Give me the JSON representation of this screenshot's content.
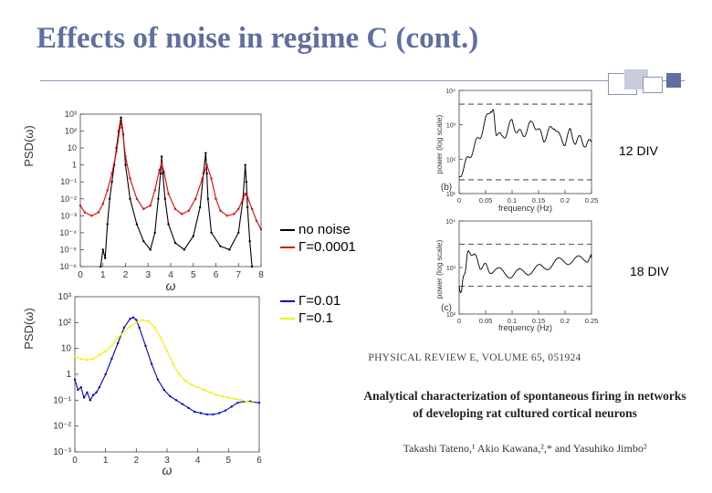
{
  "slide": {
    "title": "Effects of noise in regime C (cont.)"
  },
  "colors": {
    "title": "#5f6f9f",
    "no_noise": "#000000",
    "gamma_0001": "#e00000",
    "gamma_01": "#0000cc",
    "gamma_1": "#f0f000"
  },
  "legend": {
    "no_noise": "no noise",
    "gamma_0001": "Γ=0.0001",
    "gamma_01": "Γ=0.01",
    "gamma_1": "Γ=0.1"
  },
  "labels": {
    "div12": "12 DIV",
    "div18": "18 DIV"
  },
  "citation": {
    "journal": "PHYSICAL REVIEW E, VOLUME 65, 051924",
    "title_line1": "Analytical characterization of spontaneous firing in networks",
    "title_line2": "of developing rat cultured cortical neurons",
    "authors": "Takashi Tateno,¹ Akio Kawana,²,* and Yasuhiko Jimbo²"
  },
  "chart_data": [
    {
      "type": "line",
      "ylabel": "PSD(ω)",
      "xlabel": "ω",
      "xlim": [
        0,
        8
      ],
      "ylim_log10": [
        -6,
        3
      ],
      "yscale": "log",
      "xticks": [
        "0",
        "1",
        "2",
        "3",
        "4",
        "5",
        "6",
        "7",
        "8"
      ],
      "yticks": [
        "10⁻⁶",
        "10⁻⁵",
        "10⁻⁴",
        "10⁻³",
        "10⁻²",
        "10⁻¹",
        "1",
        "10",
        "10²",
        "10³"
      ],
      "series": [
        {
          "name": "no noise",
          "x": [
            0.9,
            1.0,
            1.1,
            1.2,
            1.3,
            1.4,
            1.5,
            1.6,
            1.7,
            1.8,
            1.9,
            2.0,
            2.2,
            2.5,
            2.8,
            3.1,
            3.3,
            3.45,
            3.55,
            3.6,
            3.65,
            3.75,
            3.9,
            4.2,
            4.6,
            5.0,
            5.3,
            5.45,
            5.55,
            5.6,
            5.65,
            5.8,
            6.2,
            6.6,
            7.0,
            7.2,
            7.3,
            7.35,
            7.4,
            7.5,
            7.6
          ],
          "log10_y": [
            -6,
            -5,
            -5.5,
            -3.5,
            -2,
            -1,
            0,
            1,
            2,
            2.8,
            1.8,
            0,
            -2,
            -3.5,
            -4.5,
            -5,
            -4,
            -2,
            -0.5,
            0.5,
            -0.5,
            -2,
            -3.5,
            -4.6,
            -5,
            -4.2,
            -2.5,
            -0.5,
            0.7,
            -0.5,
            -2,
            -4,
            -4.8,
            -5,
            -4,
            -2,
            0,
            -1,
            -2.5,
            -4.5,
            -6
          ]
        },
        {
          "name": "Γ=0.0001",
          "x": [
            0,
            0.2,
            0.5,
            0.8,
            1.0,
            1.2,
            1.4,
            1.6,
            1.75,
            1.8,
            1.85,
            2.0,
            2.2,
            2.5,
            2.8,
            3.1,
            3.3,
            3.5,
            3.6,
            3.7,
            3.9,
            4.2,
            4.5,
            4.8,
            5.1,
            5.4,
            5.6,
            5.8,
            6.0,
            6.2,
            6.5,
            6.8,
            7.0,
            7.2,
            7.3,
            7.4,
            7.6,
            7.8,
            8.0
          ],
          "log10_y": [
            -2.4,
            -2.8,
            -3.0,
            -2.8,
            -2.3,
            -1.5,
            -0.5,
            0.8,
            2.2,
            2.5,
            2.2,
            0.5,
            -0.8,
            -2.0,
            -2.6,
            -2.4,
            -1.5,
            -0.3,
            0.1,
            -0.4,
            -1.7,
            -2.6,
            -2.9,
            -2.7,
            -2.0,
            -0.8,
            0.0,
            -0.8,
            -2.0,
            -2.7,
            -3.0,
            -2.9,
            -2.6,
            -2.0,
            -1.7,
            -1.9,
            -2.6,
            -3.3,
            -3.8
          ]
        }
      ]
    },
    {
      "type": "line",
      "ylabel": "PSD(ω)",
      "xlabel": "ω",
      "xlim": [
        0,
        6
      ],
      "ylim_log10": [
        -3,
        3
      ],
      "yscale": "log",
      "xticks": [
        "0",
        "1",
        "2",
        "3",
        "4",
        "5",
        "6"
      ],
      "yticks": [
        "10⁻³",
        "10⁻²",
        "10⁻¹",
        "1",
        "10",
        "10²",
        "10³"
      ],
      "series": [
        {
          "name": "Γ=0.01",
          "x": [
            0,
            0.1,
            0.2,
            0.3,
            0.4,
            0.5,
            0.6,
            0.7,
            0.8,
            1.0,
            1.2,
            1.4,
            1.6,
            1.8,
            1.9,
            2.0,
            2.1,
            2.3,
            2.5,
            2.7,
            2.9,
            3.1,
            3.3,
            3.5,
            3.7,
            3.9,
            4.1,
            4.3,
            4.5,
            4.7,
            4.9,
            5.1,
            5.3,
            5.5,
            5.7,
            6.0
          ],
          "log10_y": [
            -0.2,
            -0.6,
            -0.5,
            -0.9,
            -0.7,
            -1.0,
            -0.8,
            -0.7,
            -0.5,
            0.0,
            0.6,
            1.2,
            1.8,
            2.15,
            2.2,
            2.1,
            1.8,
            1.1,
            0.4,
            -0.2,
            -0.6,
            -0.85,
            -1.0,
            -1.15,
            -1.3,
            -1.45,
            -1.5,
            -1.55,
            -1.55,
            -1.5,
            -1.4,
            -1.25,
            -1.1,
            -1.05,
            -1.05,
            -1.1
          ]
        },
        {
          "name": "Γ=0.1",
          "x": [
            0,
            0.2,
            0.4,
            0.6,
            0.8,
            1.0,
            1.2,
            1.4,
            1.6,
            1.8,
            2.0,
            2.2,
            2.4,
            2.6,
            2.8,
            3.0,
            3.2,
            3.4,
            3.6,
            3.8,
            4.0,
            4.2,
            4.4,
            4.6,
            4.8,
            5.0,
            5.2,
            5.4,
            5.6,
            5.8
          ],
          "log10_y": [
            0.7,
            0.6,
            0.55,
            0.6,
            0.75,
            0.9,
            1.1,
            1.4,
            1.65,
            1.85,
            2.0,
            2.1,
            2.05,
            1.8,
            1.4,
            0.9,
            0.4,
            0.0,
            -0.25,
            -0.4,
            -0.5,
            -0.6,
            -0.7,
            -0.8,
            -0.85,
            -0.9,
            -0.95,
            -1.0,
            -1.05,
            -1.1
          ]
        }
      ]
    },
    {
      "type": "line",
      "panel_label": "(b)",
      "ylabel": "power (log scale)",
      "xlabel": "frequency (Hz)",
      "xlim": [
        0,
        0.25
      ],
      "ylim_log10": [
        1,
        4
      ],
      "yscale": "log",
      "xticks": [
        "0",
        "0.05",
        "0.1",
        "0.15",
        "0.2",
        "0.25"
      ],
      "yticks": [
        "10⁴",
        "10³",
        "10²",
        "10¹"
      ],
      "reference_lines_log10": [
        3.6,
        1.4
      ],
      "series": [
        {
          "name": "",
          "x": [
            0,
            0.01,
            0.02,
            0.03,
            0.04,
            0.05,
            0.06,
            0.065,
            0.07,
            0.08,
            0.09,
            0.1,
            0.11,
            0.12,
            0.13,
            0.14,
            0.15,
            0.16,
            0.17,
            0.18,
            0.19,
            0.2,
            0.21,
            0.22,
            0.23,
            0.24,
            0.25
          ],
          "log10_y": [
            1.5,
            1.8,
            2.1,
            2.4,
            2.7,
            3.1,
            3.5,
            3.3,
            2.8,
            2.6,
            2.8,
            3.1,
            2.8,
            2.7,
            2.9,
            3.1,
            2.8,
            2.6,
            2.8,
            3.0,
            2.6,
            2.5,
            2.8,
            2.5,
            2.6,
            2.4,
            2.5
          ]
        }
      ]
    },
    {
      "type": "line",
      "panel_label": "(c)",
      "ylabel": "power (log scale)",
      "xlabel": "frequency (Hz)",
      "xlim": [
        0,
        0.25
      ],
      "ylim_log10": [
        2,
        4
      ],
      "yscale": "log",
      "xticks": [
        "0",
        "0.05",
        "0.1",
        "0.15",
        "0.2",
        "0.25"
      ],
      "yticks": [
        "10⁴",
        "10³",
        "10²"
      ],
      "reference_lines_log10": [
        3.5,
        2.6
      ],
      "series": [
        {
          "name": "",
          "x": [
            0,
            0.005,
            0.01,
            0.015,
            0.02,
            0.03,
            0.04,
            0.05,
            0.06,
            0.08,
            0.1,
            0.12,
            0.14,
            0.16,
            0.18,
            0.2,
            0.22,
            0.24,
            0.25
          ],
          "log10_y": [
            2.6,
            2.5,
            2.9,
            3.2,
            3.4,
            3.2,
            3.05,
            3.0,
            2.95,
            2.9,
            2.85,
            2.9,
            2.95,
            3.0,
            3.1,
            3.15,
            3.15,
            3.2,
            3.2
          ]
        }
      ]
    }
  ]
}
